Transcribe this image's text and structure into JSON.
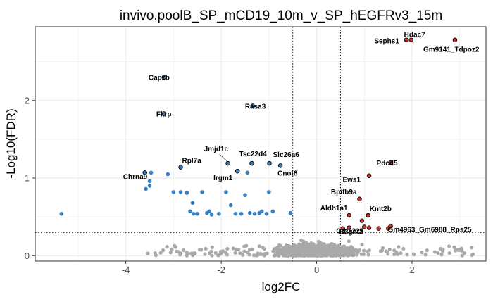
{
  "chart_data": {
    "type": "scatter",
    "title": "invivo.poolB_SP_mCD19_10m_v_SP_hEGFRv3_15m",
    "xlabel": "log2FC",
    "ylabel": "-Log10(FDR)",
    "xlim": [
      -5.9,
      3.55
    ],
    "ylim": [
      -0.07,
      2.95
    ],
    "x_ticks": [
      -4,
      -2,
      0,
      2
    ],
    "x_tick_labels": [
      "-4",
      "-2",
      "0",
      "2"
    ],
    "y_ticks": [
      0,
      1,
      2
    ],
    "y_tick_labels": [
      "0",
      "1",
      "2"
    ],
    "grid": true,
    "fdr_threshold_y": 0.3,
    "fc_threshold_x": [
      -0.5,
      0.5
    ],
    "colors": {
      "depleted": "#3a7fbf",
      "enriched": "#c8332b",
      "nonsignificant": "#a9a9a9",
      "panel_border": "#333333",
      "grid": "#ebebeb"
    },
    "depleted_points": [
      {
        "x": -5.35,
        "y": 0.54
      },
      {
        "x": -3.58,
        "y": 0.86
      },
      {
        "x": -3.5,
        "y": 0.96
      },
      {
        "x": -3.5,
        "y": 0.9
      },
      {
        "x": -3.47,
        "y": 1.07
      },
      {
        "x": -3.12,
        "y": 1.05
      },
      {
        "x": -3.0,
        "y": 0.82
      },
      {
        "x": -2.85,
        "y": 0.82
      },
      {
        "x": -2.72,
        "y": 0.81
      },
      {
        "x": -2.65,
        "y": 0.57
      },
      {
        "x": -2.6,
        "y": 0.68
      },
      {
        "x": -2.58,
        "y": 0.54
      },
      {
        "x": -2.5,
        "y": 0.54
      },
      {
        "x": -2.4,
        "y": 0.82
      },
      {
        "x": -2.3,
        "y": 0.55
      },
      {
        "x": -2.25,
        "y": 0.57
      },
      {
        "x": -2.2,
        "y": 0.53
      },
      {
        "x": -2.05,
        "y": 0.54
      },
      {
        "x": -1.9,
        "y": 0.82
      },
      {
        "x": -1.8,
        "y": 0.65
      },
      {
        "x": -1.7,
        "y": 0.54
      },
      {
        "x": -1.58,
        "y": 0.54
      },
      {
        "x": -1.5,
        "y": 0.78
      },
      {
        "x": -1.45,
        "y": 1.07
      },
      {
        "x": -1.4,
        "y": 0.55
      },
      {
        "x": -1.3,
        "y": 0.54
      },
      {
        "x": -1.2,
        "y": 0.55
      },
      {
        "x": -1.15,
        "y": 0.57
      },
      {
        "x": -1.05,
        "y": 0.54
      },
      {
        "x": -1.0,
        "y": 0.82
      },
      {
        "x": -0.92,
        "y": 0.57
      },
      {
        "x": -0.55,
        "y": 0.55
      }
    ],
    "enriched_points": [
      {
        "x": 0.55,
        "y": 0.35
      },
      {
        "x": 0.95,
        "y": 0.45
      },
      {
        "x": 1.3,
        "y": 0.35
      },
      {
        "x": 1.5,
        "y": 0.35
      },
      {
        "x": 1.55,
        "y": 0.38
      },
      {
        "x": 1.1,
        "y": 0.36
      }
    ],
    "labeled_genes": [
      {
        "name": "Hdac7",
        "x": 1.98,
        "y": 2.78,
        "group": "enriched"
      },
      {
        "name": "Sephs1",
        "x": 1.88,
        "y": 2.78,
        "group": "enriched"
      },
      {
        "name": "Gm9141_Tdpoz2",
        "x": 2.9,
        "y": 2.78,
        "group": "enriched"
      },
      {
        "name": "Pdcd5",
        "x": 1.55,
        "y": 1.2,
        "group": "enriched"
      },
      {
        "name": "Ews1",
        "x": 1.1,
        "y": 1.03,
        "group": "enriched"
      },
      {
        "name": "Bpifb9a",
        "x": 0.9,
        "y": 0.73,
        "group": "enriched"
      },
      {
        "name": "Aldh1a1",
        "x": 0.68,
        "y": 0.52,
        "group": "enriched"
      },
      {
        "name": "Kmt2b",
        "x": 1.08,
        "y": 0.52,
        "group": "enriched"
      },
      {
        "name": "Gm4963_Gm6988_Rps25",
        "x": 1.55,
        "y": 0.38,
        "group": "enriched"
      },
      {
        "name": "Gm2225",
        "x": 1.0,
        "y": 0.37,
        "group": "enriched"
      },
      {
        "name": "B3gnt2",
        "x": 0.68,
        "y": 0.36,
        "group": "enriched"
      },
      {
        "name": "Capzb",
        "x": -3.2,
        "y": 2.3,
        "group": "depleted"
      },
      {
        "name": "Fkrp",
        "x": -3.2,
        "y": 1.83,
        "group": "depleted"
      },
      {
        "name": "Rasa3",
        "x": -1.34,
        "y": 1.93,
        "group": "depleted"
      },
      {
        "name": "Jmjd1c",
        "x": -1.86,
        "y": 1.19,
        "group": "depleted"
      },
      {
        "name": "Rpl7a",
        "x": -2.85,
        "y": 1.14,
        "group": "depleted"
      },
      {
        "name": "Tsc22d4",
        "x": -1.36,
        "y": 1.19,
        "group": "depleted"
      },
      {
        "name": "Slc26a6",
        "x": -0.99,
        "y": 1.19,
        "group": "depleted"
      },
      {
        "name": "Irgm1",
        "x": -1.66,
        "y": 1.09,
        "group": "depleted"
      },
      {
        "name": "Cnot8",
        "x": -0.76,
        "y": 1.16,
        "group": "depleted"
      },
      {
        "name": "Chrna9",
        "x": -3.6,
        "y": 1.07,
        "group": "depleted"
      }
    ]
  }
}
